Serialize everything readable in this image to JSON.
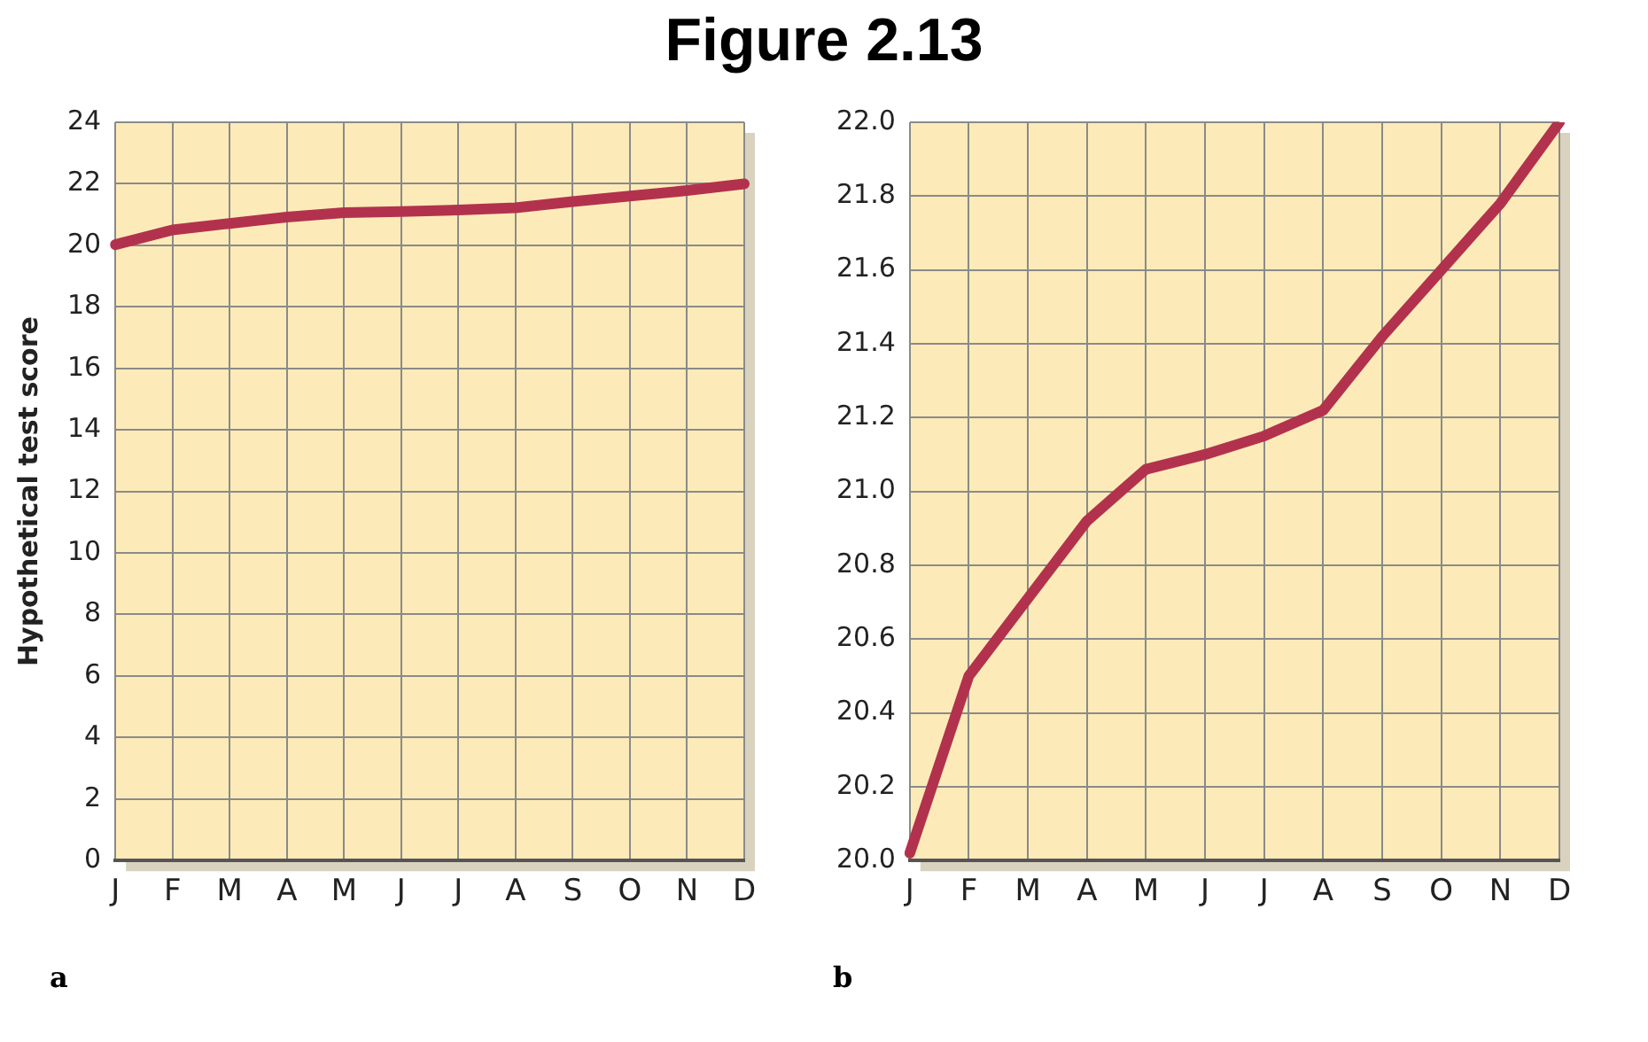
{
  "chart_data": [
    {
      "type": "line",
      "title": "Figure 2.13",
      "ylabel": "Hypothetical test score",
      "categories": [
        "J",
        "F",
        "M",
        "A",
        "M",
        "J",
        "J",
        "A",
        "S",
        "O",
        "N",
        "D"
      ],
      "series": [
        {
          "color": "#b2324e",
          "values": [
            20.02,
            20.5,
            20.71,
            20.92,
            21.06,
            21.1,
            21.15,
            21.22,
            21.42,
            21.6,
            21.78,
            22.0
          ]
        }
      ],
      "ylim": [
        0,
        24
      ],
      "yticks": [
        0,
        2,
        4,
        6,
        8,
        10,
        12,
        14,
        16,
        18,
        20,
        22,
        24
      ],
      "grid": true,
      "legend": false,
      "marker": "none",
      "line_style": "solid",
      "annotations": [
        "a"
      ]
    },
    {
      "type": "line",
      "categories": [
        "J",
        "F",
        "M",
        "A",
        "M",
        "J",
        "J",
        "A",
        "S",
        "O",
        "N",
        "D"
      ],
      "series": [
        {
          "color": "#b2324e",
          "values": [
            20.02,
            20.5,
            20.71,
            20.92,
            21.06,
            21.1,
            21.15,
            21.22,
            21.42,
            21.6,
            21.78,
            22.0
          ]
        }
      ],
      "ylim": [
        20,
        22
      ],
      "yticks": [
        {
          "value": 20,
          "label": "20.0"
        },
        {
          "value": 20.2,
          "label": "20.2"
        },
        {
          "value": 20.4,
          "label": "20.4"
        },
        {
          "value": 20.6,
          "label": "20.6"
        },
        {
          "value": 20.8,
          "label": "20.8"
        },
        {
          "value": 21,
          "label": "21.0"
        },
        {
          "value": 21.2,
          "label": "21.2"
        },
        {
          "value": 21.4,
          "label": "21.4"
        },
        {
          "value": 21.6,
          "label": "21.6"
        },
        {
          "value": 21.8,
          "label": "21.8"
        },
        {
          "value": 22,
          "label": "22.0"
        }
      ],
      "grid": true,
      "legend": false,
      "marker": "none",
      "line_style": "solid",
      "annotations": [
        "b"
      ]
    }
  ]
}
